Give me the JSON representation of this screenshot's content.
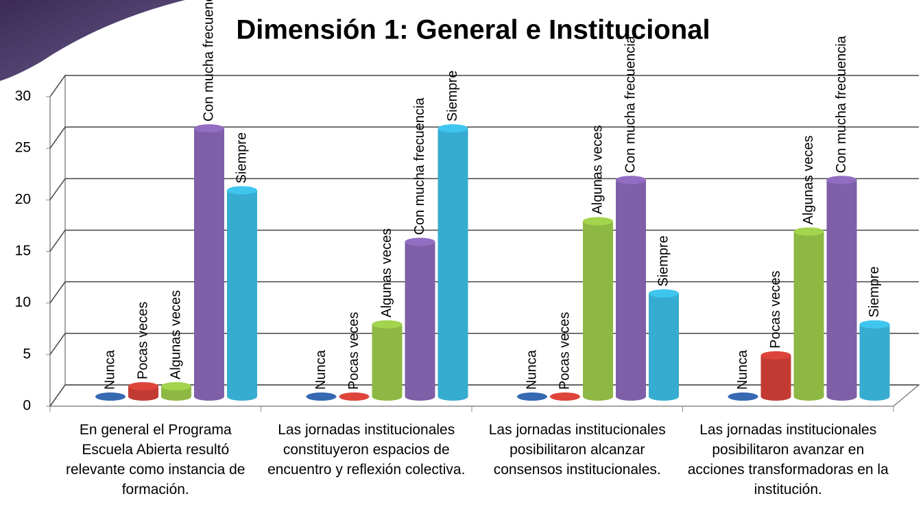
{
  "chart_data": {
    "type": "bar",
    "title": "Dimensión 1: General e Institucional",
    "categories": [
      "En general el Programa Escuela Abierta resultó relevante como instancia de formación.",
      "Las jornadas institucionales constituyeron espacios de encuentro y reflexión colectiva.",
      "Las jornadas institucionales posibilitaron alcanzar consensos institucionales.",
      "Las jornadas institucionales posibilitaron avanzar en acciones transformadoras en la institución."
    ],
    "series": [
      {
        "name": "Nunca",
        "color": "#2f5b9a",
        "values": [
          0,
          0,
          0,
          0
        ]
      },
      {
        "name": "Pocas veces",
        "color": "#c23b33",
        "values": [
          1,
          0,
          0,
          4
        ]
      },
      {
        "name": "Algunas veces",
        "color": "#8db843",
        "values": [
          1,
          7,
          17,
          16
        ]
      },
      {
        "name": "Con mucha frecuencia",
        "color": "#7f5fa8",
        "values": [
          26,
          15,
          21,
          21
        ]
      },
      {
        "name": "Siempre",
        "color": "#36acd0",
        "values": [
          20,
          26,
          10,
          7
        ]
      }
    ],
    "ylim": [
      0,
      30
    ],
    "yticks": [
      0,
      5,
      10,
      15,
      20,
      25,
      30
    ],
    "grid": true
  }
}
